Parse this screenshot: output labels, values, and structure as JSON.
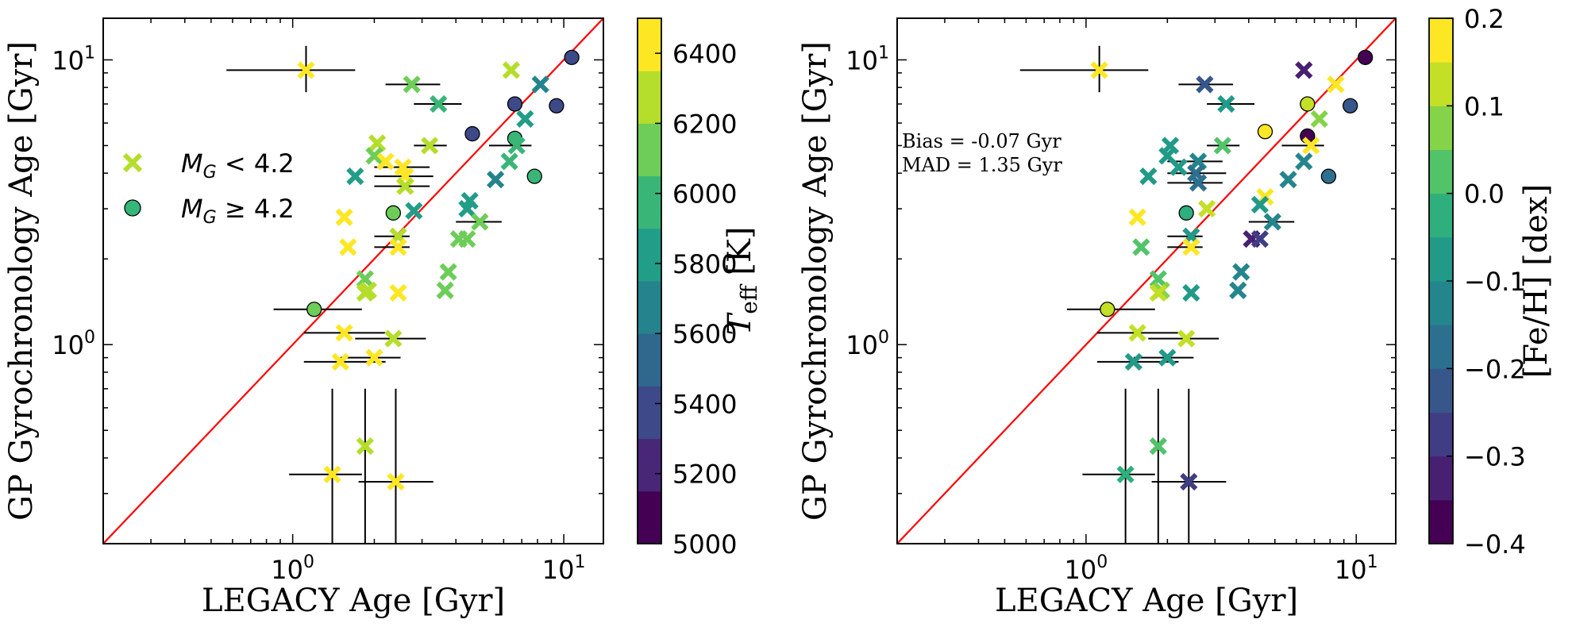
{
  "chart_data": [
    {
      "type": "scatter",
      "panel": "left",
      "title": "",
      "xlabel": "LEGACY Age [Gyr]",
      "ylabel": "GP Gyrochronology Age [Gyr]",
      "xscale": "log",
      "yscale": "log",
      "xlim": [
        0.2,
        14
      ],
      "ylim": [
        0.2,
        14
      ],
      "x_ticks": [
        {
          "value": 1,
          "label": "10^0"
        },
        {
          "value": 10,
          "label": "10^1"
        }
      ],
      "y_ticks": [
        {
          "value": 1,
          "label": "10^0"
        },
        {
          "value": 10,
          "label": "10^1"
        }
      ],
      "one_to_one_line": {
        "color": "#ff0000"
      },
      "legend": {
        "placement": "upper-left",
        "entries": [
          {
            "marker": "x",
            "label": "M_G < 4.2",
            "label_main": "M",
            "label_sub": "G",
            "label_rest": " < 4.2",
            "color": "#b5de2b"
          },
          {
            "marker": "o",
            "label": "M_G ≥ 4.2",
            "label_main": "M",
            "label_sub": "G",
            "label_rest": " ≥  4.2",
            "color": "#35b779"
          }
        ]
      },
      "colorbar": {
        "label": "T_eff [K]",
        "label_main": "T",
        "label_sub": "eff",
        "label_rest": " [K]",
        "min": 5000,
        "max": 6500,
        "levels": 10,
        "ticks": [
          "5000",
          "5200",
          "5400",
          "5600",
          "5800",
          "6000",
          "6200",
          "6400"
        ],
        "tick_values": [
          5000,
          5200,
          5400,
          5600,
          5800,
          6000,
          6200,
          6400
        ]
      },
      "points": [
        {
          "x": 1.12,
          "y": 9.2,
          "m": "x",
          "c": 6450,
          "xerr": [
            0.57,
            1.7
          ],
          "yerr": [
            7.7,
            11.2
          ]
        },
        {
          "x": 2.75,
          "y": 8.2,
          "m": "x",
          "c": 6150,
          "xerr": [
            2.2,
            3.5
          ]
        },
        {
          "x": 3.45,
          "y": 7.0,
          "m": "x",
          "c": 6000,
          "xerr": [
            2.8,
            4.2
          ]
        },
        {
          "x": 6.4,
          "y": 9.2,
          "m": "x",
          "c": 6200
        },
        {
          "x": 10.7,
          "y": 10.2,
          "m": "o",
          "c": 5350
        },
        {
          "x": 8.2,
          "y": 8.2,
          "m": "x",
          "c": 5700
        },
        {
          "x": 9.4,
          "y": 6.9,
          "m": "o",
          "c": 5400
        },
        {
          "x": 6.6,
          "y": 7.0,
          "m": "o",
          "c": 5400
        },
        {
          "x": 7.2,
          "y": 6.2,
          "m": "x",
          "c": 5750
        },
        {
          "x": 4.6,
          "y": 5.5,
          "m": "o",
          "c": 5350
        },
        {
          "x": 6.6,
          "y": 5.3,
          "m": "o",
          "c": 5950
        },
        {
          "x": 6.7,
          "y": 5.0,
          "m": "x",
          "c": 5900,
          "xerr": [
            5.3,
            7.6
          ]
        },
        {
          "x": 6.3,
          "y": 4.4,
          "m": "x",
          "c": 5950
        },
        {
          "x": 5.6,
          "y": 3.8,
          "m": "x",
          "c": 5700
        },
        {
          "x": 7.8,
          "y": 3.9,
          "m": "o",
          "c": 6000
        },
        {
          "x": 2.05,
          "y": 5.1,
          "m": "x",
          "c": 6300
        },
        {
          "x": 2.0,
          "y": 4.6,
          "m": "x",
          "c": 6150
        },
        {
          "x": 2.55,
          "y": 4.2,
          "m": "x",
          "c": 6350,
          "xerr": [
            2.0,
            3.2
          ]
        },
        {
          "x": 2.6,
          "y": 3.9,
          "m": "x",
          "c": 6350,
          "xerr": [
            2.0,
            3.3
          ]
        },
        {
          "x": 2.6,
          "y": 3.6,
          "m": "x",
          "c": 6300,
          "xerr": [
            2.0,
            3.2
          ]
        },
        {
          "x": 3.2,
          "y": 5.0,
          "m": "x",
          "c": 6250,
          "xerr": [
            2.8,
            3.7
          ]
        },
        {
          "x": 2.2,
          "y": 4.4,
          "m": "x",
          "c": 6350
        },
        {
          "x": 1.7,
          "y": 3.9,
          "m": "x",
          "c": 5850
        },
        {
          "x": 2.8,
          "y": 2.95,
          "m": "x",
          "c": 5800
        },
        {
          "x": 2.35,
          "y": 2.9,
          "m": "o",
          "c": 6050
        },
        {
          "x": 1.55,
          "y": 2.8,
          "m": "x",
          "c": 6450
        },
        {
          "x": 1.6,
          "y": 2.2,
          "m": "x",
          "c": 6400
        },
        {
          "x": 2.45,
          "y": 2.4,
          "m": "x",
          "c": 6200,
          "xerr": [
            2.0,
            2.7
          ]
        },
        {
          "x": 2.45,
          "y": 2.2,
          "m": "x",
          "c": 6350,
          "xerr": [
            2.0,
            2.7
          ]
        },
        {
          "x": 4.5,
          "y": 3.2,
          "m": "x",
          "c": 5800
        },
        {
          "x": 4.4,
          "y": 3.0,
          "m": "x",
          "c": 5850
        },
        {
          "x": 4.9,
          "y": 2.7,
          "m": "x",
          "c": 6050,
          "xerr": [
            4.0,
            5.9
          ]
        },
        {
          "x": 4.1,
          "y": 2.35,
          "m": "x",
          "c": 6100
        },
        {
          "x": 4.4,
          "y": 2.35,
          "m": "x",
          "c": 6100
        },
        {
          "x": 3.75,
          "y": 1.8,
          "m": "x",
          "c": 6150
        },
        {
          "x": 3.65,
          "y": 1.55,
          "m": "x",
          "c": 6150
        },
        {
          "x": 1.85,
          "y": 1.7,
          "m": "x",
          "c": 6150
        },
        {
          "x": 1.9,
          "y": 1.55,
          "m": "x",
          "c": 6200
        },
        {
          "x": 1.85,
          "y": 1.52,
          "m": "x",
          "c": 6300
        },
        {
          "x": 2.45,
          "y": 1.52,
          "m": "x",
          "c": 6450
        },
        {
          "x": 1.2,
          "y": 1.33,
          "m": "o",
          "c": 6100,
          "xerr": [
            0.85,
            1.8
          ]
        },
        {
          "x": 1.55,
          "y": 1.1,
          "m": "x",
          "c": 6450,
          "xerr": [
            1.1,
            2.2
          ]
        },
        {
          "x": 2.35,
          "y": 1.05,
          "m": "x",
          "c": 6250,
          "xerr": [
            1.7,
            3.1
          ]
        },
        {
          "x": 1.5,
          "y": 0.87,
          "m": "x",
          "c": 6450,
          "xerr": [
            1.1,
            2.2
          ]
        },
        {
          "x": 2.0,
          "y": 0.9,
          "m": "x",
          "c": 6400,
          "xerr": [
            1.5,
            2.5
          ]
        },
        {
          "x": 1.85,
          "y": 0.44,
          "m": "x",
          "c": 6250,
          "yerr": [
            0.2,
            0.7
          ]
        },
        {
          "x": 1.4,
          "y": 0.35,
          "m": "x",
          "c": 6450,
          "xerr": [
            0.97,
            1.8
          ],
          "yerr": [
            0.2,
            0.7
          ]
        },
        {
          "x": 2.4,
          "y": 0.33,
          "m": "x",
          "c": 6450,
          "xerr": [
            1.75,
            3.3
          ],
          "yerr": [
            0.2,
            0.7
          ]
        }
      ]
    },
    {
      "type": "scatter",
      "panel": "right",
      "title": "",
      "xlabel": "LEGACY Age [Gyr]",
      "ylabel": "GP Gyrochronology Age [Gyr]",
      "xscale": "log",
      "yscale": "log",
      "xlim": [
        0.2,
        14
      ],
      "ylim": [
        0.2,
        14
      ],
      "x_ticks": [
        {
          "value": 1,
          "label": "10^0"
        },
        {
          "value": 10,
          "label": "10^1"
        }
      ],
      "y_ticks": [
        {
          "value": 1,
          "label": "10^0"
        },
        {
          "value": 10,
          "label": "10^1"
        }
      ],
      "one_to_one_line": {
        "color": "#ff0000"
      },
      "annotations": [
        "Bias = -0.07 Gyr",
        "MAD = 1.35 Gyr"
      ],
      "colorbar": {
        "label": "[Fe/H] [dex]",
        "min": -0.4,
        "max": 0.2,
        "levels": 12,
        "ticks": [
          "−0.4",
          "−0.3",
          "−0.2",
          "−0.1",
          "0.0",
          "0.1",
          "0.2"
        ],
        "tick_values": [
          -0.4,
          -0.3,
          -0.2,
          -0.1,
          0.0,
          0.1,
          0.2
        ]
      },
      "points": [
        {
          "x": 1.12,
          "y": 9.2,
          "m": "x",
          "c": 0.19,
          "xerr": [
            0.57,
            1.7
          ],
          "yerr": [
            7.7,
            11.2
          ]
        },
        {
          "x": 2.75,
          "y": 8.2,
          "m": "x",
          "c": -0.25,
          "xerr": [
            2.2,
            3.5
          ]
        },
        {
          "x": 3.3,
          "y": 7.0,
          "m": "x",
          "c": -0.1,
          "xerr": [
            2.8,
            4.2
          ]
        },
        {
          "x": 6.4,
          "y": 9.2,
          "m": "x",
          "c": -0.33
        },
        {
          "x": 10.8,
          "y": 10.2,
          "m": "o",
          "c": -0.38
        },
        {
          "x": 8.4,
          "y": 8.2,
          "m": "x",
          "c": 0.17
        },
        {
          "x": 9.5,
          "y": 6.9,
          "m": "o",
          "c": -0.25
        },
        {
          "x": 6.6,
          "y": 7.0,
          "m": "o",
          "c": 0.1
        },
        {
          "x": 7.3,
          "y": 6.2,
          "m": "x",
          "c": 0.07
        },
        {
          "x": 4.6,
          "y": 5.6,
          "m": "o",
          "c": 0.18
        },
        {
          "x": 6.6,
          "y": 5.4,
          "m": "o",
          "c": -0.37
        },
        {
          "x": 6.8,
          "y": 5.0,
          "m": "x",
          "c": 0.15,
          "xerr": [
            5.3,
            7.6
          ]
        },
        {
          "x": 6.4,
          "y": 4.4,
          "m": "x",
          "c": -0.12
        },
        {
          "x": 5.6,
          "y": 3.8,
          "m": "x",
          "c": -0.12
        },
        {
          "x": 7.9,
          "y": 3.9,
          "m": "o",
          "c": -0.2
        },
        {
          "x": 2.05,
          "y": 5.0,
          "m": "x",
          "c": -0.05
        },
        {
          "x": 2.0,
          "y": 4.6,
          "m": "x",
          "c": -0.07
        },
        {
          "x": 2.6,
          "y": 4.4,
          "m": "x",
          "c": -0.15,
          "xerr": [
            2.0,
            3.2
          ]
        },
        {
          "x": 2.55,
          "y": 4.0,
          "m": "x",
          "c": -0.2,
          "xerr": [
            2.0,
            3.3
          ]
        },
        {
          "x": 2.6,
          "y": 3.7,
          "m": "x",
          "c": -0.18,
          "xerr": [
            2.0,
            3.2
          ]
        },
        {
          "x": 3.2,
          "y": 5.0,
          "m": "x",
          "c": 0.0,
          "xerr": [
            2.8,
            3.7
          ]
        },
        {
          "x": 2.2,
          "y": 4.2,
          "m": "x",
          "c": -0.08
        },
        {
          "x": 1.7,
          "y": 3.9,
          "m": "x",
          "c": -0.05
        },
        {
          "x": 2.8,
          "y": 3.0,
          "m": "x",
          "c": 0.12
        },
        {
          "x": 2.35,
          "y": 2.9,
          "m": "o",
          "c": -0.03
        },
        {
          "x": 1.55,
          "y": 2.8,
          "m": "x",
          "c": 0.18
        },
        {
          "x": 1.6,
          "y": 2.2,
          "m": "x",
          "c": 0.03
        },
        {
          "x": 2.45,
          "y": 2.4,
          "m": "x",
          "c": -0.08,
          "xerr": [
            2.0,
            2.7
          ]
        },
        {
          "x": 2.45,
          "y": 2.2,
          "m": "x",
          "c": 0.17,
          "xerr": [
            2.0,
            2.7
          ]
        },
        {
          "x": 4.6,
          "y": 3.3,
          "m": "x",
          "c": 0.17
        },
        {
          "x": 4.4,
          "y": 3.1,
          "m": "x",
          "c": -0.05
        },
        {
          "x": 4.9,
          "y": 2.7,
          "m": "x",
          "c": -0.15,
          "xerr": [
            4.0,
            5.9
          ]
        },
        {
          "x": 4.1,
          "y": 2.35,
          "m": "x",
          "c": -0.33
        },
        {
          "x": 4.4,
          "y": 2.35,
          "m": "x",
          "c": -0.3
        },
        {
          "x": 3.75,
          "y": 1.8,
          "m": "x",
          "c": -0.12
        },
        {
          "x": 3.65,
          "y": 1.55,
          "m": "x",
          "c": -0.12
        },
        {
          "x": 1.85,
          "y": 1.7,
          "m": "x",
          "c": 0.02
        },
        {
          "x": 1.9,
          "y": 1.55,
          "m": "x",
          "c": 0.08
        },
        {
          "x": 1.85,
          "y": 1.52,
          "m": "x",
          "c": 0.12
        },
        {
          "x": 2.45,
          "y": 1.52,
          "m": "x",
          "c": -0.05
        },
        {
          "x": 1.2,
          "y": 1.33,
          "m": "o",
          "c": 0.1,
          "xerr": [
            0.85,
            1.8
          ]
        },
        {
          "x": 1.55,
          "y": 1.1,
          "m": "x",
          "c": 0.12,
          "xerr": [
            1.1,
            2.2
          ]
        },
        {
          "x": 2.35,
          "y": 1.05,
          "m": "x",
          "c": 0.1,
          "xerr": [
            1.7,
            3.1
          ]
        },
        {
          "x": 1.5,
          "y": 0.87,
          "m": "x",
          "c": -0.08,
          "xerr": [
            1.1,
            2.2
          ]
        },
        {
          "x": 2.0,
          "y": 0.9,
          "m": "x",
          "c": -0.08,
          "xerr": [
            1.5,
            2.5
          ]
        },
        {
          "x": 1.85,
          "y": 0.44,
          "m": "x",
          "c": 0.05,
          "yerr": [
            0.2,
            0.7
          ]
        },
        {
          "x": 1.4,
          "y": 0.35,
          "m": "x",
          "c": -0.02,
          "xerr": [
            0.97,
            1.8
          ],
          "yerr": [
            0.2,
            0.7
          ]
        },
        {
          "x": 2.4,
          "y": 0.33,
          "m": "x",
          "c": -0.3,
          "xerr": [
            1.75,
            3.3
          ],
          "yerr": [
            0.2,
            0.7
          ]
        }
      ]
    }
  ]
}
